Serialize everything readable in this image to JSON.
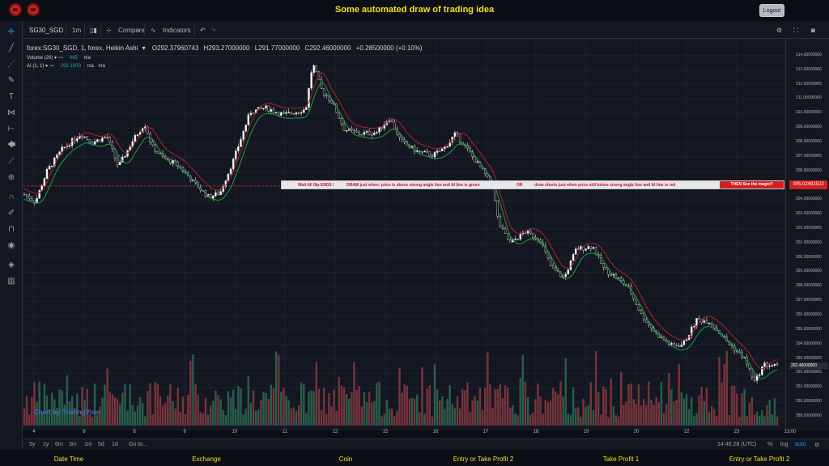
{
  "app": {
    "title": "Some automated draw of trading idea",
    "logout_label": "Logout"
  },
  "toolbar": {
    "symbol": "SG30_SGD",
    "interval": "1m",
    "compare": "Compare",
    "indicators": "Indicators"
  },
  "legend": {
    "main": "forex:SG30_SGD, 1, forex, Heikin Ashi",
    "open": "O292.37960743",
    "high": "H293.27000000",
    "low": "L291.77000000",
    "close": "C292.46000000",
    "change": "+0.28500000 (+0.10%)",
    "volume_label": "Volume (20)",
    "volume_val": "445",
    "volume_na": "n/a",
    "ai_label": "AI (1, 1)",
    "ai_val": "292.1000",
    "ai_na1": "n/a",
    "ai_na2": "n/a"
  },
  "banner": {
    "seg1": "Wait till flip ENDS  !",
    "seg2": "DRAW just when:  price is above strong angle line and AI line is green",
    "seg3": "OR",
    "seg4": "draw shorts just when price still below strong angle line and AI line is red",
    "magic": "THEN See the magic!!"
  },
  "price_tag": "305.02492522",
  "chart_data": {
    "type": "candlestick",
    "symbol": "forex:SG30_SGD",
    "y_ticks": [
      "314.00000000",
      "313.00000000",
      "312.00000000",
      "311.00000000",
      "310.00000000",
      "309.00000000",
      "308.00000000",
      "307.00000000",
      "306.00000000",
      "304.00000000",
      "303.00000000",
      "302.00000000",
      "301.00000000",
      "300.00000000",
      "299.00000000",
      "298.00000000",
      "297.00000000",
      "296.00000000",
      "295.00000000",
      "294.00000000",
      "293.00000000",
      "292.00000000",
      "291.00000000",
      "290.00000000",
      "289.00000000"
    ],
    "current_price": "292.46000000",
    "x_ticks": [
      "4",
      "6",
      "8",
      "9",
      "10",
      "11",
      "12",
      "15",
      "16",
      "17",
      "18",
      "19",
      "20",
      "22",
      "23",
      "13:00"
    ],
    "ylim": [
      288.6,
      314.5
    ],
    "close_path": [
      [
        0,
        304.4
      ],
      [
        1.5,
        303.9
      ],
      [
        3,
        306.0
      ],
      [
        5,
        307.5
      ],
      [
        7.5,
        308.6
      ],
      [
        9,
        308.0
      ],
      [
        11,
        308.4
      ],
      [
        12.5,
        306.3
      ],
      [
        14.5,
        308.2
      ],
      [
        16,
        309.3
      ],
      [
        17,
        307.7
      ],
      [
        18.5,
        306.9
      ],
      [
        20.5,
        306.4
      ],
      [
        22.5,
        305.2
      ],
      [
        24.5,
        304.2
      ],
      [
        26,
        304.5
      ],
      [
        27.8,
        306.8
      ],
      [
        30,
        310.1
      ],
      [
        32,
        310.4
      ],
      [
        34.5,
        309.9
      ],
      [
        37.4,
        310.3
      ],
      [
        38.3,
        313.5
      ],
      [
        39.5,
        311.6
      ],
      [
        41,
        310.7
      ],
      [
        42.5,
        308.9
      ],
      [
        44.5,
        308.6
      ],
      [
        46.8,
        308.7
      ],
      [
        48.5,
        309.7
      ],
      [
        50,
        308.1
      ],
      [
        52,
        307.4
      ],
      [
        54.3,
        307.1
      ],
      [
        55.8,
        307.6
      ],
      [
        57.3,
        308.6
      ],
      [
        59,
        307.4
      ],
      [
        60.5,
        306.3
      ],
      [
        62.2,
        305.0
      ],
      [
        63,
        302.4
      ],
      [
        64.5,
        301.0
      ],
      [
        66.5,
        301.8
      ],
      [
        68.5,
        301.3
      ],
      [
        70,
        299.3
      ],
      [
        71.7,
        298.6
      ],
      [
        73.3,
        300.6
      ],
      [
        75.5,
        300.8
      ],
      [
        77,
        299.2
      ],
      [
        78.5,
        298.7
      ],
      [
        80.3,
        297.9
      ],
      [
        82,
        296.0
      ],
      [
        84,
        294.7
      ],
      [
        86,
        293.9
      ],
      [
        87.5,
        294.0
      ],
      [
        89.3,
        295.7
      ],
      [
        91,
        295.6
      ],
      [
        93.5,
        294.1
      ],
      [
        95.7,
        293.0
      ],
      [
        97,
        291.4
      ],
      [
        98.2,
        292.6
      ],
      [
        100,
        292.5
      ]
    ],
    "volume_note": "volume bars along bottom, red/green"
  },
  "bottom": {
    "ranges": [
      "5y",
      "1y",
      "6m",
      "3m",
      "1m",
      "5d",
      "1d"
    ],
    "goto": "Go to...",
    "time": "14:46:28 (UTC)",
    "pct": "%",
    "log": "log",
    "auto": "auto"
  },
  "footer": [
    "Date Time",
    "Exchange",
    "Coin",
    "Entry or Take Profit 2",
    "Take Profit 1",
    "Entry or Take Profit 2"
  ],
  "watermark": "Chart by TradingView"
}
